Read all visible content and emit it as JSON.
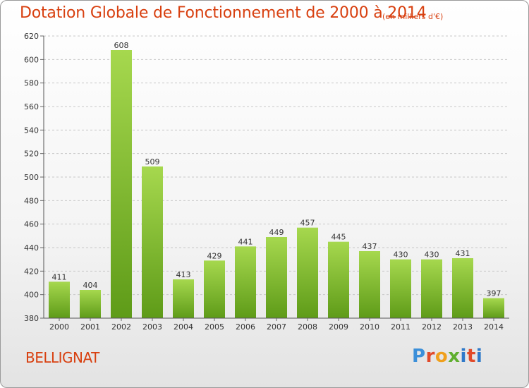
{
  "header": {
    "title": "Dotation Globale de Fonctionnement de 2000 à 2014",
    "unit": "(en milliers d'€)"
  },
  "footer": {
    "place": "BELLIGNAT",
    "logo_letters": [
      "P",
      "r",
      "o",
      "x",
      "i",
      "t",
      "i"
    ]
  },
  "colors": {
    "title": "#d84010",
    "bar_light": "#a6d84e",
    "bar_dark": "#5e9b18",
    "grid": "#c8c8c8"
  },
  "chart_data": {
    "type": "bar",
    "title": "Dotation Globale de Fonctionnement de 2000 à 2014",
    "xlabel": "",
    "ylabel": "",
    "categories": [
      "2000",
      "2001",
      "2002",
      "2003",
      "2004",
      "2005",
      "2006",
      "2007",
      "2008",
      "2009",
      "2010",
      "2011",
      "2012",
      "2013",
      "2014"
    ],
    "values": [
      411,
      404,
      608,
      509,
      413,
      429,
      441,
      449,
      457,
      445,
      437,
      430,
      430,
      431,
      397
    ],
    "ylim": [
      380,
      620
    ],
    "yticks": [
      380,
      400,
      420,
      440,
      460,
      480,
      500,
      520,
      540,
      560,
      580,
      600,
      620
    ],
    "grid": true,
    "data_labels": true
  }
}
